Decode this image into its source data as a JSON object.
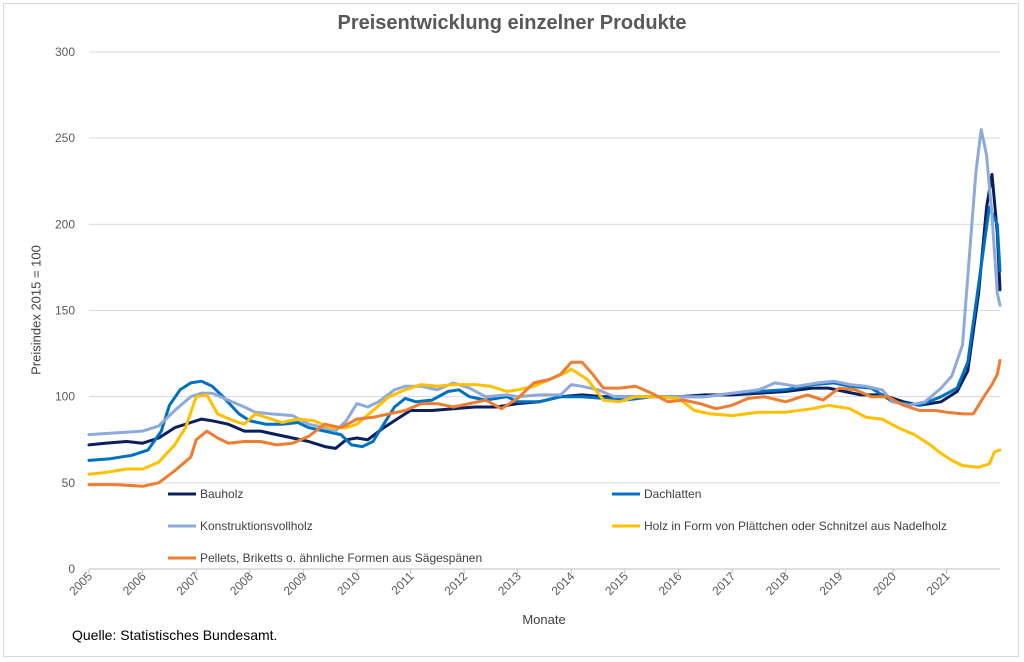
{
  "source": "Quelle: Statistisches Bundesamt.",
  "chart_data": {
    "type": "line",
    "title": "Preisentwicklung einzelner Produkte",
    "xlabel": "Monate",
    "ylabel": "Preisindex 2015 = 100",
    "ylim": [
      0,
      300
    ],
    "yticks": [
      "0",
      "50",
      "100",
      "150",
      "200",
      "250",
      "300"
    ],
    "xlim": [
      2005,
      2022
    ],
    "xticks": [
      "2005",
      "2006",
      "2007",
      "2008",
      "2009",
      "2010",
      "2011",
      "2012",
      "2013",
      "2014",
      "2015",
      "2016",
      "2017",
      "2018",
      "2019",
      "2020",
      "2021"
    ],
    "grid": "horizontal",
    "legend": "inside-bottom",
    "series": [
      {
        "name": "Bauholz",
        "color": "#0b1f5c",
        "points": [
          [
            2005.0,
            72
          ],
          [
            2005.3,
            73
          ],
          [
            2005.7,
            74
          ],
          [
            2006.0,
            73
          ],
          [
            2006.3,
            76
          ],
          [
            2006.6,
            82
          ],
          [
            2006.9,
            85
          ],
          [
            2007.1,
            87
          ],
          [
            2007.3,
            86
          ],
          [
            2007.6,
            84
          ],
          [
            2007.9,
            80
          ],
          [
            2008.2,
            80
          ],
          [
            2008.5,
            78
          ],
          [
            2008.8,
            76
          ],
          [
            2009.1,
            74
          ],
          [
            2009.4,
            71
          ],
          [
            2009.6,
            70
          ],
          [
            2009.8,
            75
          ],
          [
            2010.0,
            76
          ],
          [
            2010.2,
            75
          ],
          [
            2010.5,
            82
          ],
          [
            2010.8,
            88
          ],
          [
            2011.0,
            92
          ],
          [
            2011.4,
            92
          ],
          [
            2011.8,
            93
          ],
          [
            2012.2,
            94
          ],
          [
            2012.6,
            94
          ],
          [
            2013.0,
            96
          ],
          [
            2013.4,
            97
          ],
          [
            2013.8,
            100
          ],
          [
            2014.2,
            101
          ],
          [
            2014.6,
            100
          ],
          [
            2015.0,
            100
          ],
          [
            2015.5,
            100
          ],
          [
            2016.0,
            100
          ],
          [
            2016.5,
            101
          ],
          [
            2017.0,
            101
          ],
          [
            2017.5,
            102
          ],
          [
            2018.0,
            103
          ],
          [
            2018.5,
            105
          ],
          [
            2018.8,
            105
          ],
          [
            2019.1,
            103
          ],
          [
            2019.4,
            101
          ],
          [
            2019.8,
            101
          ],
          [
            2020.2,
            97
          ],
          [
            2020.5,
            95
          ],
          [
            2020.9,
            97
          ],
          [
            2021.2,
            103
          ],
          [
            2021.4,
            115
          ],
          [
            2021.6,
            160
          ],
          [
            2021.75,
            210
          ],
          [
            2021.85,
            229
          ],
          [
            2021.95,
            195
          ],
          [
            2022.0,
            162
          ]
        ]
      },
      {
        "name": "Dachlatten",
        "color": "#0070c0",
        "points": [
          [
            2005.0,
            63
          ],
          [
            2005.4,
            64
          ],
          [
            2005.8,
            66
          ],
          [
            2006.1,
            69
          ],
          [
            2006.35,
            80
          ],
          [
            2006.5,
            95
          ],
          [
            2006.7,
            104
          ],
          [
            2006.9,
            108
          ],
          [
            2007.1,
            109
          ],
          [
            2007.3,
            106
          ],
          [
            2007.5,
            100
          ],
          [
            2007.8,
            90
          ],
          [
            2008.0,
            86
          ],
          [
            2008.3,
            84
          ],
          [
            2008.6,
            84
          ],
          [
            2008.9,
            85
          ],
          [
            2009.1,
            82
          ],
          [
            2009.4,
            80
          ],
          [
            2009.7,
            78
          ],
          [
            2009.9,
            72
          ],
          [
            2010.1,
            71
          ],
          [
            2010.3,
            74
          ],
          [
            2010.5,
            84
          ],
          [
            2010.7,
            94
          ],
          [
            2010.9,
            99
          ],
          [
            2011.1,
            97
          ],
          [
            2011.4,
            98
          ],
          [
            2011.7,
            103
          ],
          [
            2011.9,
            104
          ],
          [
            2012.1,
            100
          ],
          [
            2012.4,
            98
          ],
          [
            2012.8,
            100
          ],
          [
            2013.0,
            97
          ],
          [
            2013.4,
            97
          ],
          [
            2013.8,
            100
          ],
          [
            2014.2,
            100
          ],
          [
            2014.6,
            99
          ],
          [
            2015.0,
            98
          ],
          [
            2015.5,
            100
          ],
          [
            2016.0,
            100
          ],
          [
            2016.5,
            100
          ],
          [
            2017.0,
            102
          ],
          [
            2017.5,
            103
          ],
          [
            2018.0,
            104
          ],
          [
            2018.5,
            107
          ],
          [
            2018.9,
            108
          ],
          [
            2019.2,
            106
          ],
          [
            2019.6,
            105
          ],
          [
            2020.0,
            97
          ],
          [
            2020.5,
            95
          ],
          [
            2020.9,
            100
          ],
          [
            2021.2,
            105
          ],
          [
            2021.4,
            120
          ],
          [
            2021.6,
            165
          ],
          [
            2021.8,
            210
          ],
          [
            2021.95,
            200
          ],
          [
            2022.0,
            173
          ]
        ]
      },
      {
        "name": "Konstruktionsvollholz",
        "color": "#8eaadb",
        "points": [
          [
            2005.0,
            78
          ],
          [
            2005.5,
            79
          ],
          [
            2006.0,
            80
          ],
          [
            2006.3,
            83
          ],
          [
            2006.6,
            92
          ],
          [
            2006.9,
            100
          ],
          [
            2007.1,
            102
          ],
          [
            2007.3,
            102
          ],
          [
            2007.6,
            98
          ],
          [
            2007.9,
            94
          ],
          [
            2008.1,
            91
          ],
          [
            2008.4,
            90
          ],
          [
            2008.8,
            89
          ],
          [
            2009.1,
            84
          ],
          [
            2009.4,
            82
          ],
          [
            2009.6,
            80
          ],
          [
            2009.8,
            86
          ],
          [
            2010.0,
            96
          ],
          [
            2010.2,
            94
          ],
          [
            2010.4,
            97
          ],
          [
            2010.7,
            104
          ],
          [
            2010.9,
            106
          ],
          [
            2011.2,
            106
          ],
          [
            2011.5,
            104
          ],
          [
            2011.8,
            108
          ],
          [
            2012.1,
            105
          ],
          [
            2012.4,
            100
          ],
          [
            2012.8,
            101
          ],
          [
            2013.0,
            100
          ],
          [
            2013.4,
            101
          ],
          [
            2013.8,
            101
          ],
          [
            2014.0,
            107
          ],
          [
            2014.2,
            106
          ],
          [
            2014.5,
            104
          ],
          [
            2014.8,
            100
          ],
          [
            2015.0,
            100
          ],
          [
            2015.5,
            100
          ],
          [
            2016.0,
            100
          ],
          [
            2016.5,
            100
          ],
          [
            2017.0,
            102
          ],
          [
            2017.5,
            104
          ],
          [
            2017.8,
            108
          ],
          [
            2018.2,
            106
          ],
          [
            2018.6,
            108
          ],
          [
            2018.9,
            109
          ],
          [
            2019.2,
            107
          ],
          [
            2019.5,
            106
          ],
          [
            2019.8,
            104
          ],
          [
            2020.0,
            97
          ],
          [
            2020.3,
            95
          ],
          [
            2020.6,
            97
          ],
          [
            2020.9,
            105
          ],
          [
            2021.1,
            112
          ],
          [
            2021.3,
            130
          ],
          [
            2021.45,
            190
          ],
          [
            2021.55,
            230
          ],
          [
            2021.65,
            255
          ],
          [
            2021.75,
            240
          ],
          [
            2021.85,
            205
          ],
          [
            2021.95,
            160
          ],
          [
            2022.0,
            153
          ]
        ]
      },
      {
        "name": "Holz in Form von Plättchen oder Schnitzel aus Nadelholz",
        "color": "#ffc000",
        "points": [
          [
            2005.0,
            55
          ],
          [
            2005.3,
            56
          ],
          [
            2005.7,
            58
          ],
          [
            2006.0,
            58
          ],
          [
            2006.3,
            62
          ],
          [
            2006.6,
            72
          ],
          [
            2006.8,
            82
          ],
          [
            2007.0,
            100
          ],
          [
            2007.2,
            101
          ],
          [
            2007.4,
            90
          ],
          [
            2007.7,
            86
          ],
          [
            2007.9,
            84
          ],
          [
            2008.1,
            90
          ],
          [
            2008.3,
            88
          ],
          [
            2008.6,
            85
          ],
          [
            2008.9,
            87
          ],
          [
            2009.2,
            86
          ],
          [
            2009.5,
            82
          ],
          [
            2009.8,
            82
          ],
          [
            2010.0,
            84
          ],
          [
            2010.3,
            92
          ],
          [
            2010.6,
            100
          ],
          [
            2010.9,
            104
          ],
          [
            2011.2,
            107
          ],
          [
            2011.5,
            106
          ],
          [
            2011.8,
            107
          ],
          [
            2012.2,
            107
          ],
          [
            2012.5,
            106
          ],
          [
            2012.8,
            103
          ],
          [
            2013.0,
            104
          ],
          [
            2013.3,
            106
          ],
          [
            2013.6,
            110
          ],
          [
            2013.9,
            114
          ],
          [
            2014.0,
            116
          ],
          [
            2014.3,
            110
          ],
          [
            2014.6,
            98
          ],
          [
            2014.9,
            97
          ],
          [
            2015.2,
            100
          ],
          [
            2015.6,
            100
          ],
          [
            2016.0,
            99
          ],
          [
            2016.3,
            92
          ],
          [
            2016.6,
            90
          ],
          [
            2017.0,
            89
          ],
          [
            2017.5,
            91
          ],
          [
            2018.0,
            91
          ],
          [
            2018.5,
            93
          ],
          [
            2018.8,
            95
          ],
          [
            2019.2,
            93
          ],
          [
            2019.5,
            88
          ],
          [
            2019.8,
            87
          ],
          [
            2020.1,
            82
          ],
          [
            2020.4,
            78
          ],
          [
            2020.7,
            72
          ],
          [
            2020.9,
            67
          ],
          [
            2021.1,
            63
          ],
          [
            2021.3,
            60
          ],
          [
            2021.6,
            59
          ],
          [
            2021.8,
            61
          ],
          [
            2021.9,
            68
          ],
          [
            2022.0,
            69
          ]
        ]
      },
      {
        "name": "Pellets, Briketts o. ähnliche Formen aus Sägespänen",
        "color": "#ed7d31",
        "points": [
          [
            2005.0,
            49
          ],
          [
            2005.5,
            49
          ],
          [
            2006.0,
            48
          ],
          [
            2006.3,
            50
          ],
          [
            2006.6,
            57
          ],
          [
            2006.9,
            65
          ],
          [
            2007.0,
            75
          ],
          [
            2007.2,
            80
          ],
          [
            2007.4,
            76
          ],
          [
            2007.6,
            73
          ],
          [
            2007.9,
            74
          ],
          [
            2008.2,
            74
          ],
          [
            2008.5,
            72
          ],
          [
            2008.8,
            73
          ],
          [
            2009.1,
            77
          ],
          [
            2009.4,
            84
          ],
          [
            2009.7,
            82
          ],
          [
            2010.0,
            87
          ],
          [
            2010.3,
            88
          ],
          [
            2010.6,
            90
          ],
          [
            2010.9,
            92
          ],
          [
            2011.2,
            96
          ],
          [
            2011.5,
            96
          ],
          [
            2011.8,
            94
          ],
          [
            2012.1,
            96
          ],
          [
            2012.4,
            98
          ],
          [
            2012.7,
            93
          ],
          [
            2013.0,
            99
          ],
          [
            2013.3,
            108
          ],
          [
            2013.6,
            110
          ],
          [
            2013.8,
            113
          ],
          [
            2014.0,
            120
          ],
          [
            2014.2,
            120
          ],
          [
            2014.4,
            113
          ],
          [
            2014.6,
            105
          ],
          [
            2014.9,
            105
          ],
          [
            2015.2,
            106
          ],
          [
            2015.5,
            102
          ],
          [
            2015.8,
            97
          ],
          [
            2016.1,
            98
          ],
          [
            2016.4,
            96
          ],
          [
            2016.7,
            93
          ],
          [
            2017.0,
            95
          ],
          [
            2017.3,
            99
          ],
          [
            2017.6,
            100
          ],
          [
            2018.0,
            97
          ],
          [
            2018.4,
            101
          ],
          [
            2018.7,
            98
          ],
          [
            2019.0,
            105
          ],
          [
            2019.3,
            104
          ],
          [
            2019.6,
            100
          ],
          [
            2019.9,
            100
          ],
          [
            2020.2,
            95
          ],
          [
            2020.5,
            92
          ],
          [
            2020.8,
            92
          ],
          [
            2021.0,
            91
          ],
          [
            2021.3,
            90
          ],
          [
            2021.5,
            90
          ],
          [
            2021.7,
            100
          ],
          [
            2021.85,
            107
          ],
          [
            2021.95,
            113
          ],
          [
            2022.0,
            121
          ]
        ]
      }
    ]
  }
}
